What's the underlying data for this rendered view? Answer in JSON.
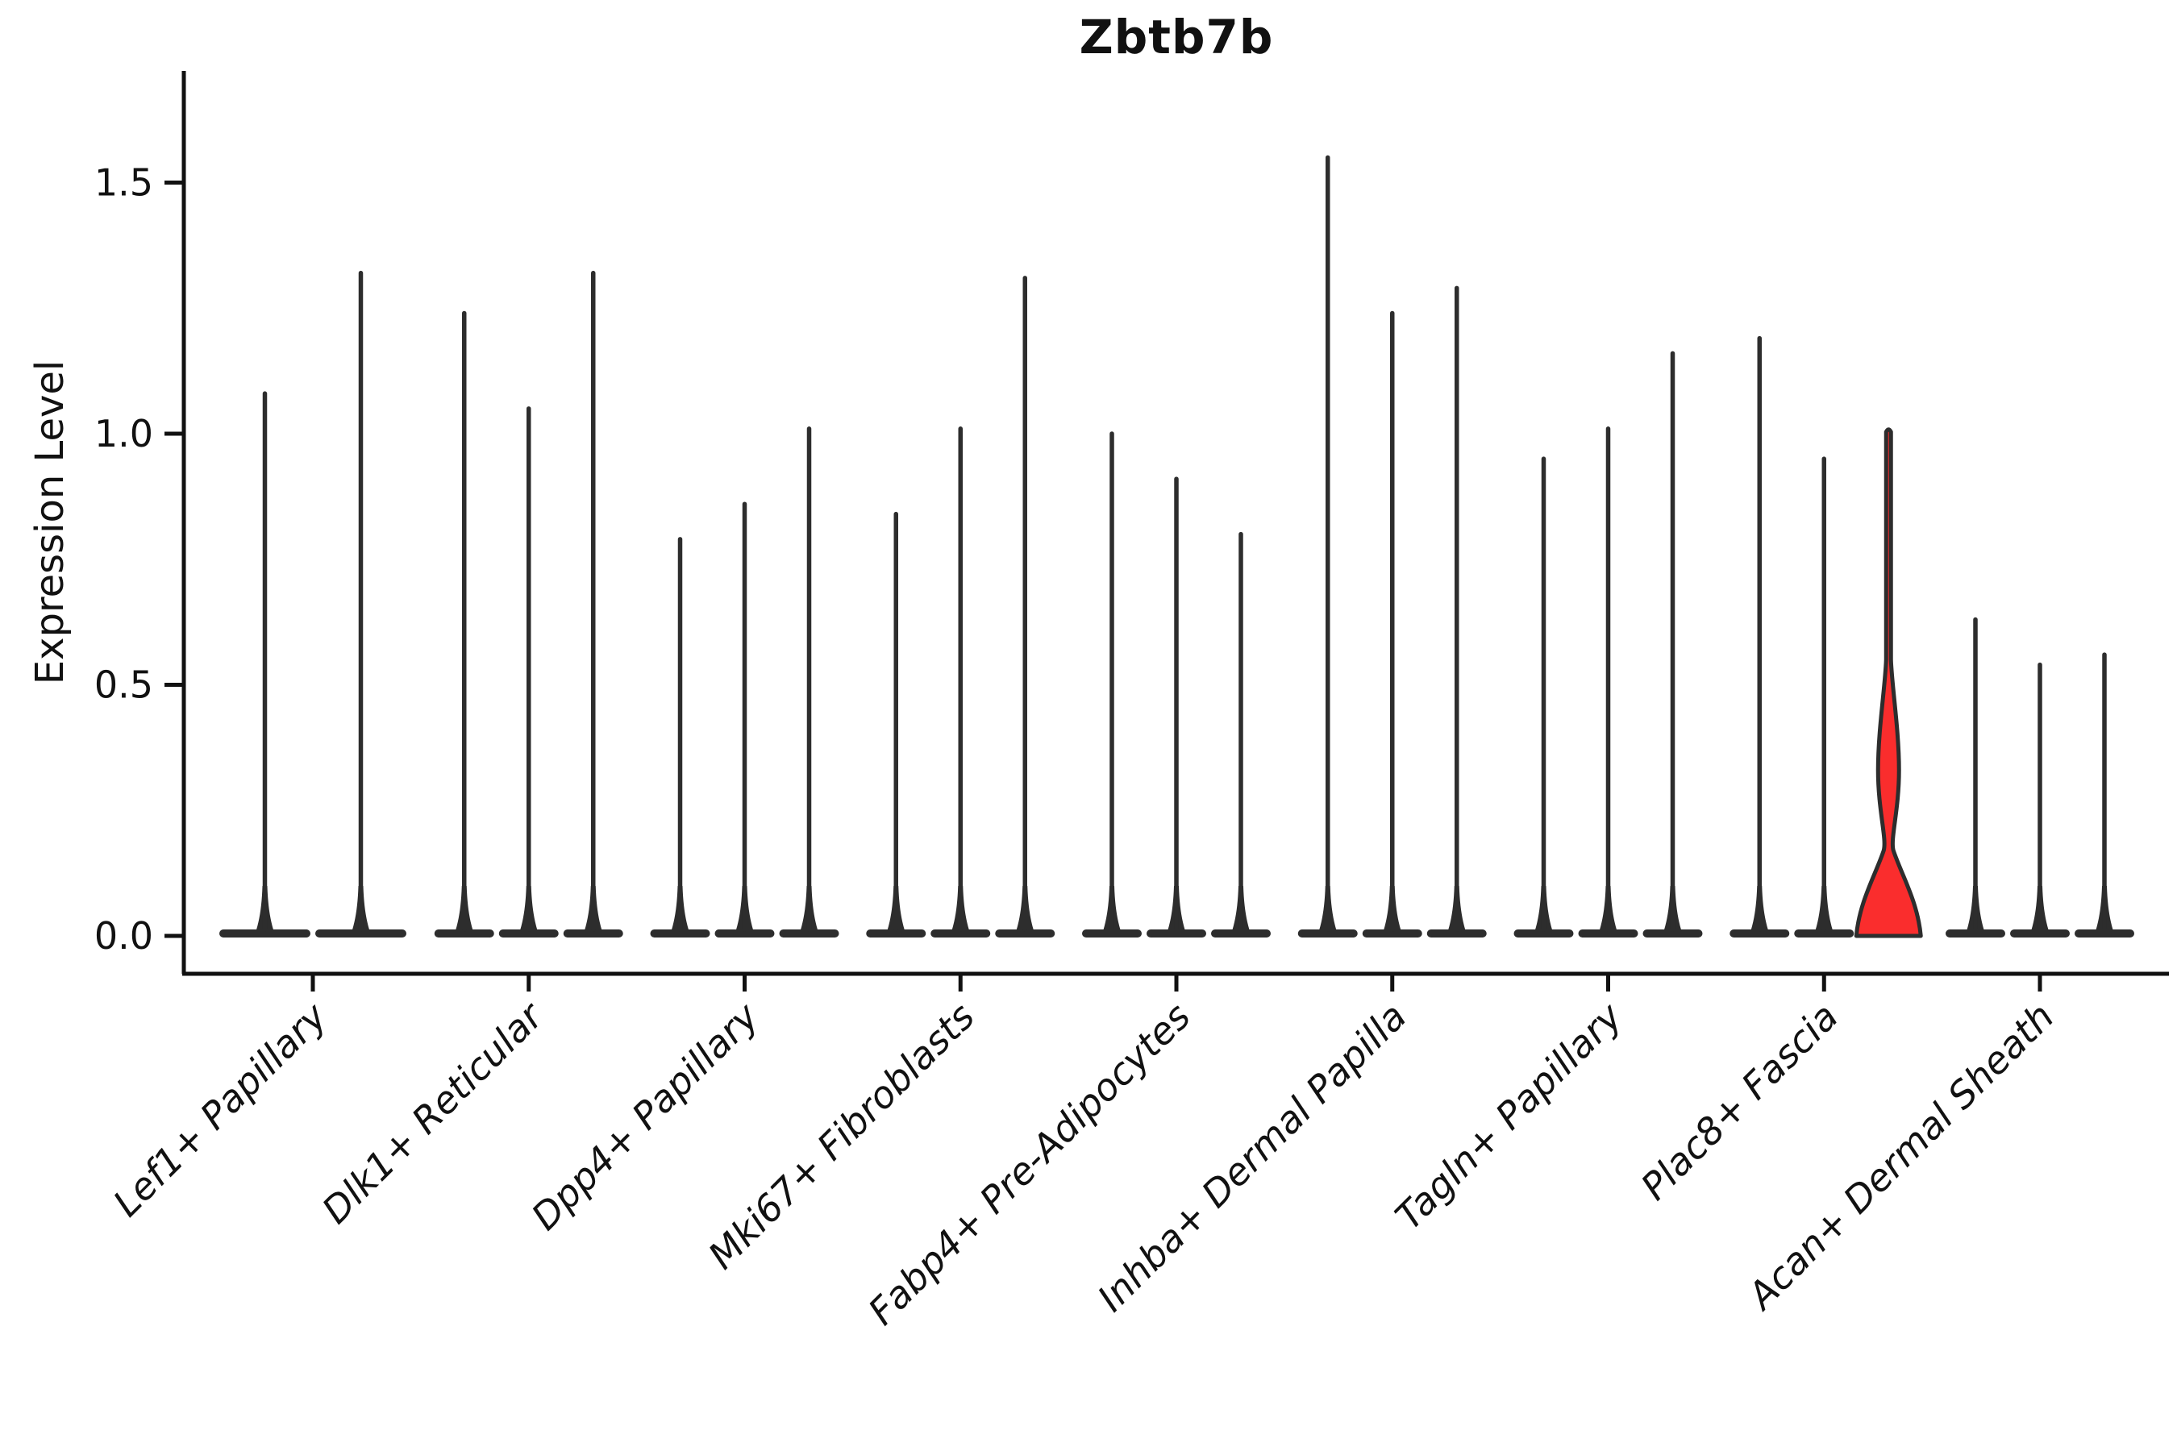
{
  "chart_data": {
    "type": "violin",
    "title": "Zbtb7b",
    "xlabel": "",
    "ylabel": "Expression Level",
    "ylim": [
      -0.08,
      1.72
    ],
    "yticks": [
      1.5,
      1.0,
      0.5,
      0.0
    ],
    "ytick_labels": [
      "1.5",
      "1.0",
      "0.5",
      "0.0"
    ],
    "grid": false,
    "legend": "none",
    "outline_color": "#2d2d2d",
    "spine_color": "#111111",
    "highlight_fill_color": "#fa2d2d",
    "normal_fill_color": "#ffffff",
    "categories": [
      "Lef1+ Papillary",
      "Dlk1+ Reticular",
      "Dpp4+ Papillary",
      "Mki67+ Fibroblasts",
      "Fabp4+ Pre-Adipocytes",
      "Inhba+ Dermal Papilla",
      "Tagln+ Papillary",
      "Plac8+ Fascia",
      "Acan+ Dermal Sheath"
    ],
    "description": "Grouped violin plot; every violin has its density mass concentrated at expression 0 (flat wide base) with a thin tail spike rising to its maximum expression value. One violin (third of Plac8+ Fascia) is highlighted red and shows visible density bulges.",
    "groups": [
      {
        "category": "Lef1+ Papillary",
        "violins": [
          {
            "max": 1.08
          },
          {
            "max": 1.32
          }
        ]
      },
      {
        "category": "Dlk1+ Reticular",
        "violins": [
          {
            "max": 1.24
          },
          {
            "max": 1.05
          },
          {
            "max": 1.32
          }
        ]
      },
      {
        "category": "Dpp4+ Papillary",
        "violins": [
          {
            "max": 0.79
          },
          {
            "max": 0.86
          },
          {
            "max": 1.01
          }
        ]
      },
      {
        "category": "Mki67+ Fibroblasts",
        "violins": [
          {
            "max": 0.84
          },
          {
            "max": 1.01
          },
          {
            "max": 1.31
          }
        ]
      },
      {
        "category": "Fabp4+ Pre-Adipocytes",
        "violins": [
          {
            "max": 1.0
          },
          {
            "max": 0.91
          },
          {
            "max": 0.8
          }
        ]
      },
      {
        "category": "Inhba+ Dermal Papilla",
        "violins": [
          {
            "max": 1.55
          },
          {
            "max": 1.24
          },
          {
            "max": 1.29
          }
        ]
      },
      {
        "category": "Tagln+ Papillary",
        "violins": [
          {
            "max": 0.95
          },
          {
            "max": 1.01
          },
          {
            "max": 1.16
          }
        ]
      },
      {
        "category": "Plac8+ Fascia",
        "violins": [
          {
            "max": 1.19
          },
          {
            "max": 0.95
          },
          {
            "max": 1.01,
            "highlighted": true,
            "bulge": {
              "waist": 0.17,
              "lens_peak": 0.33,
              "lens_top": 0.55
            }
          }
        ]
      },
      {
        "category": "Acan+ Dermal Sheath",
        "violins": [
          {
            "max": 0.63
          },
          {
            "max": 0.54
          },
          {
            "max": 0.56
          }
        ]
      }
    ]
  }
}
